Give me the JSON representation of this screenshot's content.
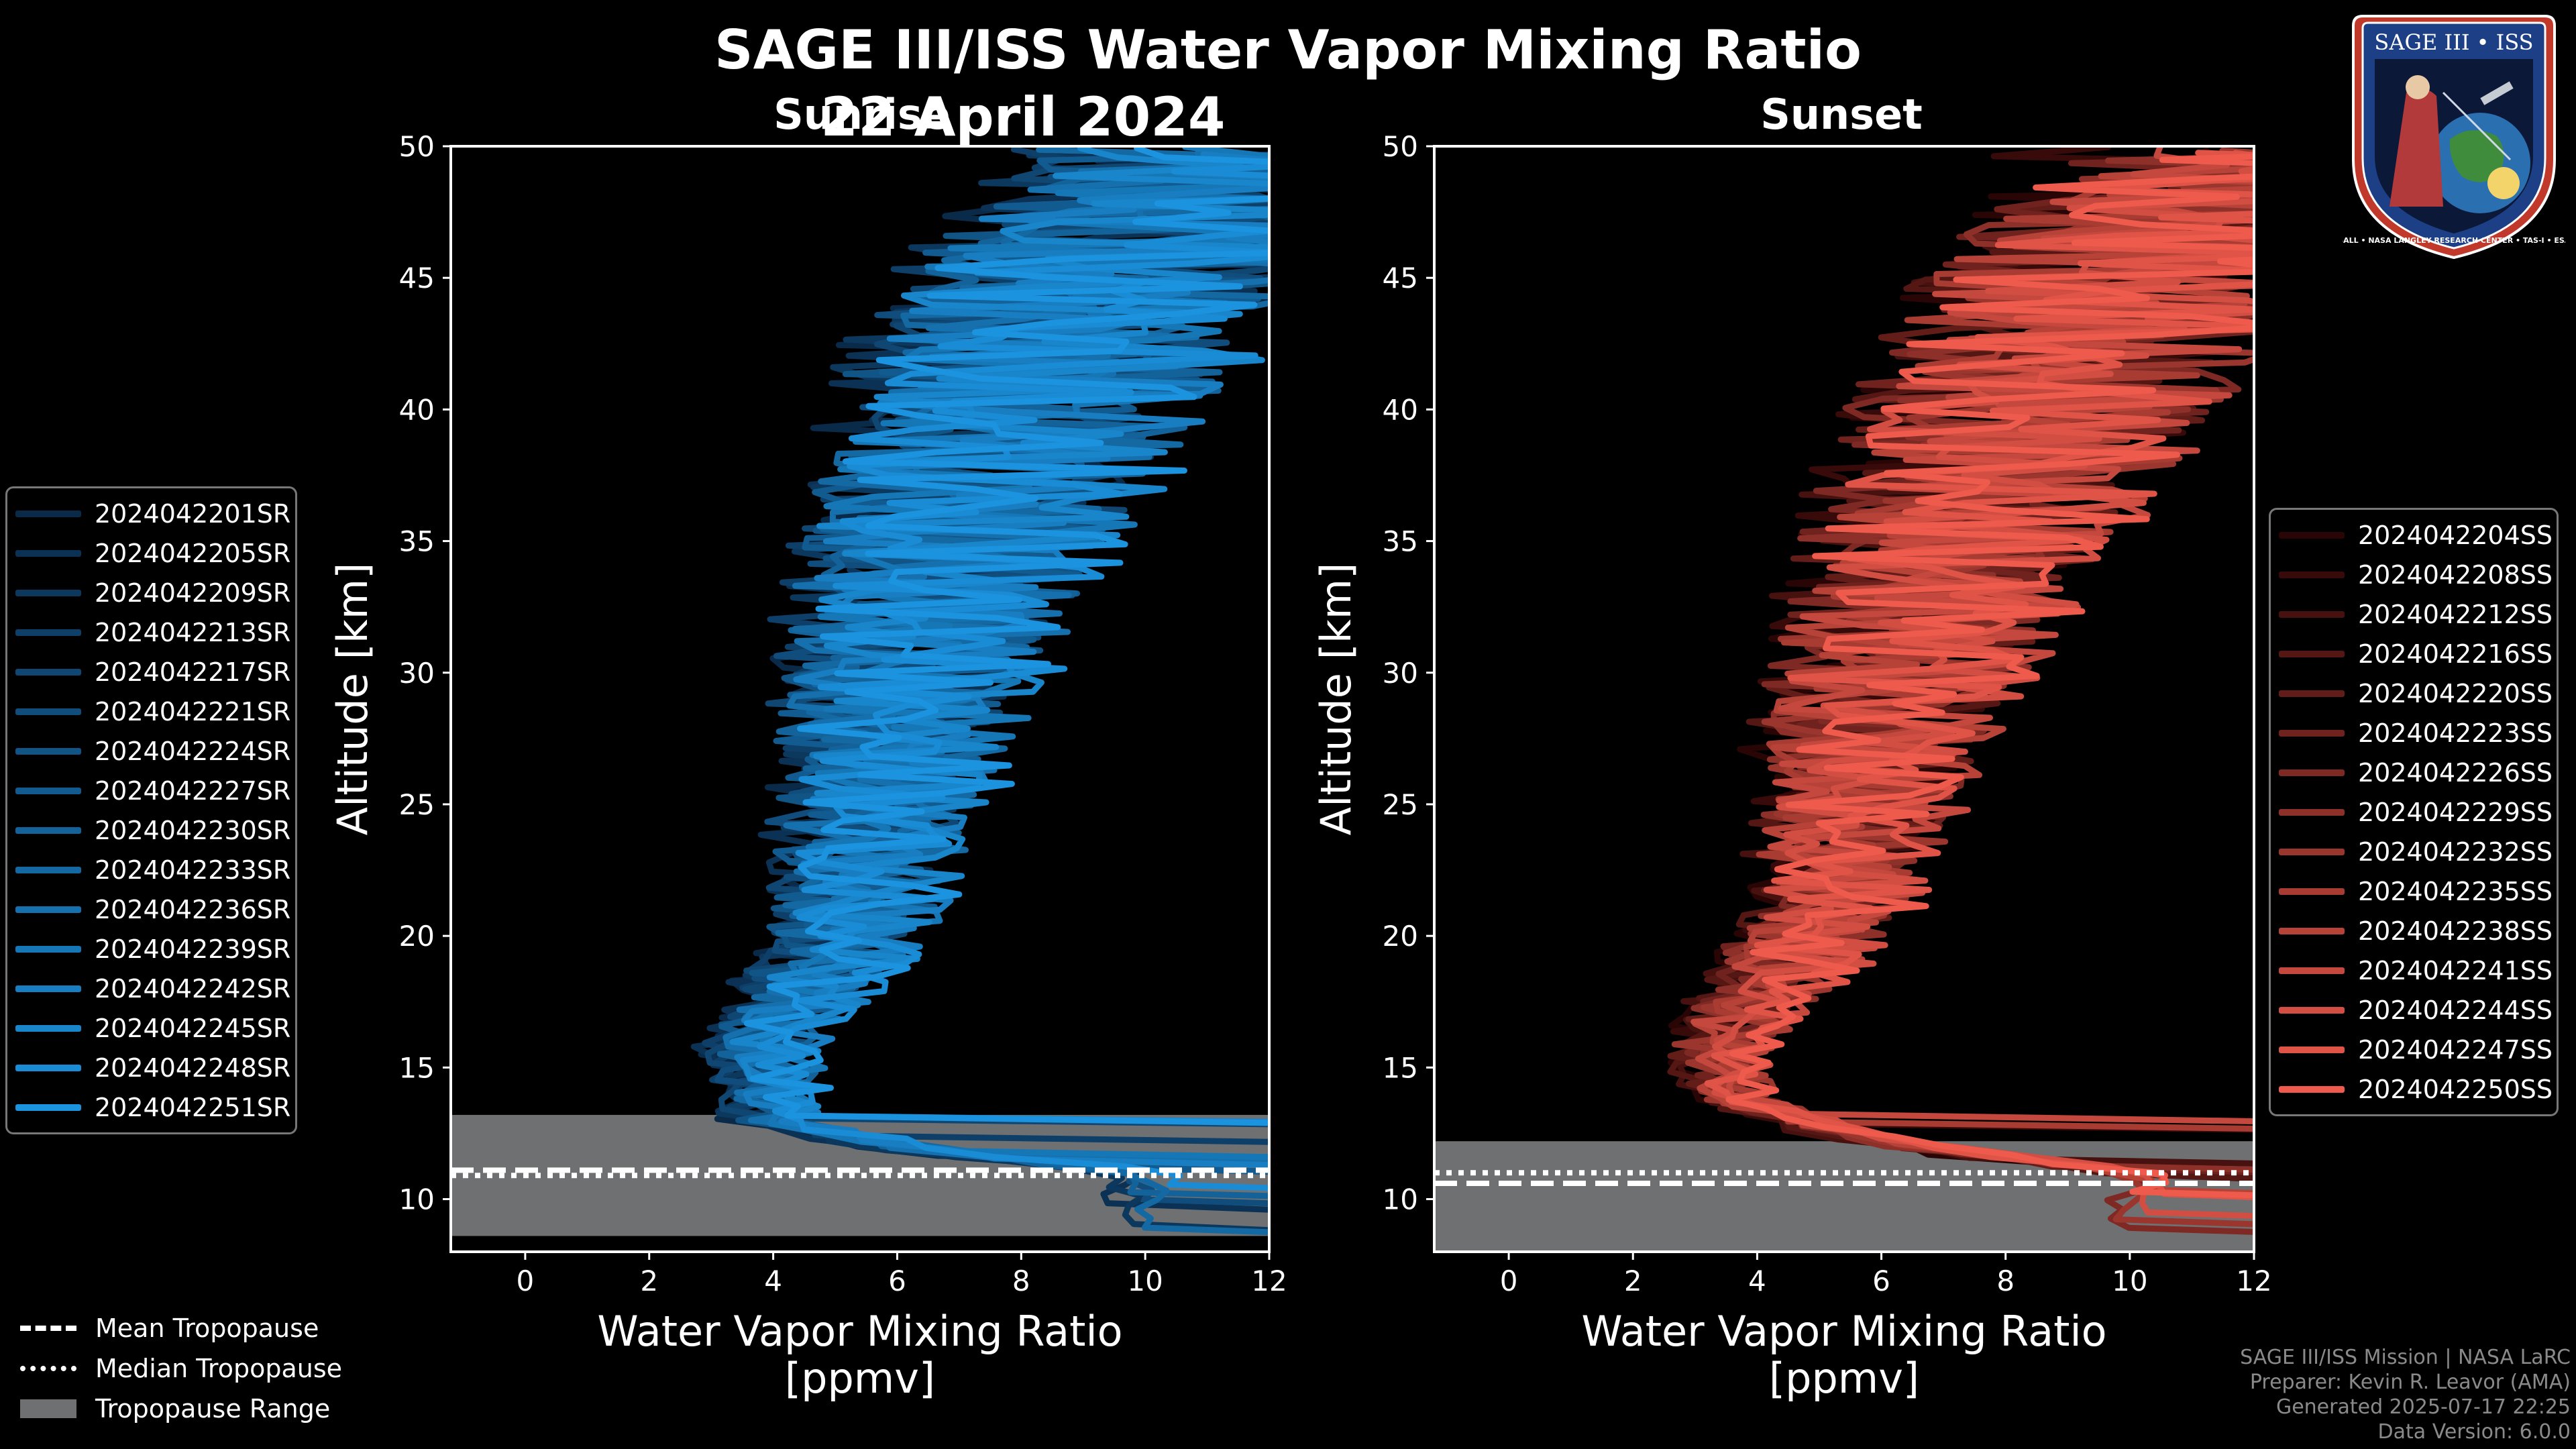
{
  "title": "SAGE III/ISS Water Vapor Mixing Ratio",
  "date": "22 April 2024",
  "chart_data": [
    {
      "type": "line",
      "panel": "Sunrise",
      "title": "Sunrise",
      "xlabel": "Water Vapor Mixing Ratio [ppmv]",
      "ylabel": "Altitude [km]",
      "xlim": [
        -1.2,
        12
      ],
      "ylim": [
        8,
        50
      ],
      "xticks": [
        0,
        2,
        4,
        6,
        8,
        10,
        12
      ],
      "yticks": [
        10,
        15,
        20,
        25,
        30,
        35,
        40,
        45,
        50
      ],
      "series_color_range": [
        "#0a2a4a",
        "#1b93df"
      ],
      "series": [
        {
          "name": "2024042201SR"
        },
        {
          "name": "2024042205SR"
        },
        {
          "name": "2024042209SR"
        },
        {
          "name": "2024042213SR"
        },
        {
          "name": "2024042217SR"
        },
        {
          "name": "2024042221SR"
        },
        {
          "name": "2024042224SR"
        },
        {
          "name": "2024042227SR"
        },
        {
          "name": "2024042230SR"
        },
        {
          "name": "2024042233SR"
        },
        {
          "name": "2024042236SR"
        },
        {
          "name": "2024042239SR"
        },
        {
          "name": "2024042242SR"
        },
        {
          "name": "2024042245SR"
        },
        {
          "name": "2024042248SR"
        },
        {
          "name": "2024042251SR"
        }
      ],
      "representative_profile": {
        "altitude_km": [
          11,
          12,
          13,
          14,
          16,
          18,
          20,
          22,
          25,
          28,
          30,
          33,
          35,
          38,
          40,
          43,
          45,
          48,
          50
        ],
        "mixing_ratio_ppmv": [
          10,
          6,
          4,
          4,
          3.9,
          4.6,
          5.2,
          5.5,
          5.7,
          6,
          6.3,
          6.6,
          7,
          7.6,
          8,
          8.8,
          9.5,
          11,
          12
        ]
      },
      "tropopause": {
        "mean_km": 11.1,
        "median_km": 10.9,
        "range_km": [
          8.6,
          13.2
        ]
      }
    },
    {
      "type": "line",
      "panel": "Sunset",
      "title": "Sunset",
      "xlabel": "Water Vapor Mixing Ratio [ppmv]",
      "ylabel": "Altitude [km]",
      "xlim": [
        -1.2,
        12
      ],
      "ylim": [
        8,
        50
      ],
      "xticks": [
        0,
        2,
        4,
        6,
        8,
        10,
        12
      ],
      "yticks": [
        10,
        15,
        20,
        25,
        30,
        35,
        40,
        45,
        50
      ],
      "series_color_range": [
        "#2a0505",
        "#ee5a4c"
      ],
      "series": [
        {
          "name": "2024042204SS"
        },
        {
          "name": "2024042208SS"
        },
        {
          "name": "2024042212SS"
        },
        {
          "name": "2024042216SS"
        },
        {
          "name": "2024042220SS"
        },
        {
          "name": "2024042223SS"
        },
        {
          "name": "2024042226SS"
        },
        {
          "name": "2024042229SS"
        },
        {
          "name": "2024042232SS"
        },
        {
          "name": "2024042235SS"
        },
        {
          "name": "2024042238SS"
        },
        {
          "name": "2024042241SS"
        },
        {
          "name": "2024042244SS"
        },
        {
          "name": "2024042247SS"
        },
        {
          "name": "2024042250SS"
        }
      ],
      "representative_profile": {
        "altitude_km": [
          11,
          12,
          13,
          14,
          16,
          18,
          20,
          22,
          25,
          28,
          30,
          33,
          35,
          38,
          40,
          43,
          45,
          48,
          50
        ],
        "mixing_ratio_ppmv": [
          10,
          6.5,
          4.5,
          3.6,
          3.4,
          4.2,
          4.9,
          5.3,
          5.7,
          6,
          6.3,
          6.8,
          7.2,
          8,
          8.5,
          9.5,
          10.2,
          11.5,
          12
        ]
      },
      "tropopause": {
        "mean_km": 10.6,
        "median_km": 11.0,
        "range_km": [
          8.0,
          12.2
        ]
      }
    }
  ],
  "legend_bottom": {
    "mean": "Mean Tropopause",
    "median": "Median Tropopause",
    "range": "Tropopause Range"
  },
  "footer": {
    "line1": "SAGE III/ISS Mission | NASA LaRC",
    "line2": "Preparer: Kevin R. Leavor (AMA)",
    "line3": "Generated 2025-07-17 22:25",
    "line4": "Data Version: 6.0.0"
  },
  "logo": {
    "top_text": "SAGE III • ISS",
    "ring_text": "BALL • NASA LANGLEY RESEARCH CENTER • TAS-I • ESA"
  },
  "colors": {
    "sunrise": "#1b93df",
    "sunset": "#ee5a4c",
    "tropopause_range": "#6f7072"
  }
}
